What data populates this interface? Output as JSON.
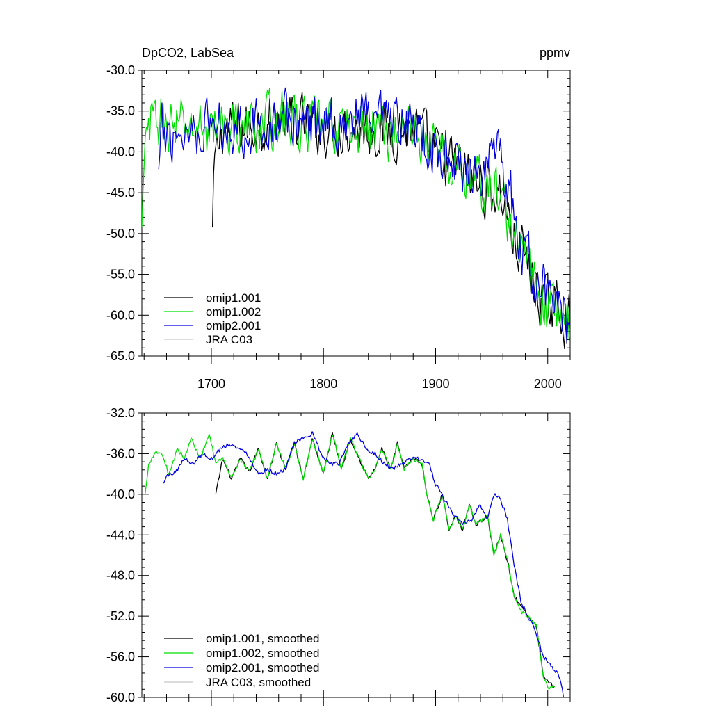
{
  "figure": {
    "title_left": "DpCO2, LabSea",
    "title_right": "ppmv"
  },
  "chart_data": [
    {
      "type": "line",
      "title": "DpCO2, LabSea",
      "units": "ppmv",
      "xlim": [
        1638,
        2020
      ],
      "ylim": [
        -65,
        -30
      ],
      "x_ticks": [
        1700,
        1800,
        1900,
        2000
      ],
      "y_ticks": [
        -30,
        -35,
        -40,
        -45,
        -50,
        -55,
        -60,
        -65
      ],
      "y_tick_labels": [
        "-30.0",
        "-35.0",
        "-40.0",
        "-45.0",
        "-50.0",
        "-55.0",
        "-60.0",
        "-65.0"
      ],
      "x_tick_labels": [
        "1700",
        "1800",
        "1900",
        "2000"
      ],
      "legend": [
        "omip1.001",
        "omip1.002",
        "omip2.001",
        "JRA C03"
      ],
      "series": [
        {
          "name": "omip1.001",
          "color": "#000000",
          "start": 1701,
          "end": 2020,
          "spike": -50,
          "anchors": [
            [
              1701,
              -50
            ],
            [
              1703,
              -41.5
            ],
            [
              1710,
              -37
            ],
            [
              1730,
              -37
            ],
            [
              1760,
              -36
            ],
            [
              1800,
              -37
            ],
            [
              1830,
              -37
            ],
            [
              1860,
              -37.5
            ],
            [
              1880,
              -37
            ],
            [
              1900,
              -40
            ],
            [
              1920,
              -42
            ],
            [
              1940,
              -44
            ],
            [
              1960,
              -45.5
            ],
            [
              1970,
              -51
            ],
            [
              1980,
              -53
            ],
            [
              1990,
              -57
            ],
            [
              2000,
              -59
            ],
            [
              2010,
              -59
            ],
            [
              2018,
              -61
            ]
          ]
        },
        {
          "name": "omip1.002",
          "color": "#00e000",
          "start": 1638,
          "end": 2020,
          "spike": -50,
          "anchors": [
            [
              1638,
              -50
            ],
            [
              1642,
              -38
            ],
            [
              1650,
              -36
            ],
            [
              1670,
              -37
            ],
            [
              1700,
              -37
            ],
            [
              1730,
              -37
            ],
            [
              1760,
              -36
            ],
            [
              1800,
              -37
            ],
            [
              1830,
              -37
            ],
            [
              1860,
              -37.5
            ],
            [
              1880,
              -37
            ],
            [
              1900,
              -40
            ],
            [
              1920,
              -42
            ],
            [
              1940,
              -44
            ],
            [
              1960,
              -45.5
            ],
            [
              1970,
              -51
            ],
            [
              1980,
              -53
            ],
            [
              1990,
              -57
            ],
            [
              2000,
              -59
            ],
            [
              2010,
              -59.5
            ],
            [
              2018,
              -61
            ]
          ]
        },
        {
          "name": "omip2.001",
          "color": "#0000e0",
          "start": 1653,
          "end": 2020,
          "spike": -43,
          "anchors": [
            [
              1653,
              -43
            ],
            [
              1656,
              -38
            ],
            [
              1670,
              -37.5
            ],
            [
              1700,
              -36.5
            ],
            [
              1730,
              -37
            ],
            [
              1760,
              -36
            ],
            [
              1800,
              -36.5
            ],
            [
              1830,
              -36
            ],
            [
              1860,
              -37
            ],
            [
              1880,
              -37
            ],
            [
              1900,
              -39.5
            ],
            [
              1920,
              -41.5
            ],
            [
              1940,
              -42.5
            ],
            [
              1955,
              -41
            ],
            [
              1965,
              -44
            ],
            [
              1975,
              -51
            ],
            [
              1990,
              -56
            ],
            [
              2000,
              -57.5
            ],
            [
              2010,
              -58.5
            ],
            [
              2018,
              -61
            ]
          ]
        },
        {
          "name": "JRA C03",
          "color": "#c8c8c8",
          "start": 2019,
          "end": 2019,
          "anchors": []
        }
      ]
    },
    {
      "type": "line",
      "title": "",
      "xlim": [
        1638,
        2020
      ],
      "ylim": [
        -60,
        -32
      ],
      "x_ticks": [
        1700,
        1800,
        1900,
        2000
      ],
      "y_ticks": [
        -32,
        -36,
        -40,
        -44,
        -48,
        -52,
        -56,
        -60
      ],
      "y_tick_labels": [
        "-32.0",
        "-36.0",
        "-40.0",
        "-44.0",
        "-48.0",
        "-52.0",
        "-56.0",
        "-60.0"
      ],
      "legend": [
        "omip1.001, smoothed",
        "omip1.002, smoothed",
        "omip2.001, smoothed",
        "JRA C03, smoothed"
      ],
      "series": [
        {
          "name": "omip1.001, smoothed",
          "color": "#000000",
          "start": 1704,
          "end": 2006,
          "anchors": [
            [
              1704,
              -40
            ],
            [
              1710,
              -36.5
            ],
            [
              1718,
              -38.5
            ],
            [
              1726,
              -36.5
            ],
            [
              1734,
              -37.8
            ],
            [
              1742,
              -35.5
            ],
            [
              1750,
              -38.5
            ],
            [
              1758,
              -35
            ],
            [
              1766,
              -37.5
            ],
            [
              1774,
              -35
            ],
            [
              1782,
              -38.5
            ],
            [
              1790,
              -34.5
            ],
            [
              1800,
              -38
            ],
            [
              1808,
              -34
            ],
            [
              1816,
              -37.5
            ],
            [
              1824,
              -34.5
            ],
            [
              1834,
              -37
            ],
            [
              1840,
              -38.5
            ],
            [
              1846,
              -37.5
            ],
            [
              1852,
              -35.5
            ],
            [
              1860,
              -37.5
            ],
            [
              1866,
              -35
            ],
            [
              1872,
              -37.5
            ],
            [
              1880,
              -36.5
            ],
            [
              1888,
              -37
            ],
            [
              1892,
              -40
            ],
            [
              1898,
              -42.5
            ],
            [
              1906,
              -40
            ],
            [
              1912,
              -43.5
            ],
            [
              1918,
              -42
            ],
            [
              1924,
              -43.5
            ],
            [
              1930,
              -41
            ],
            [
              1936,
              -43
            ],
            [
              1942,
              -42.5
            ],
            [
              1946,
              -42
            ],
            [
              1952,
              -46
            ],
            [
              1958,
              -44
            ],
            [
              1965,
              -47
            ],
            [
              1970,
              -50
            ],
            [
              1976,
              -51
            ],
            [
              1982,
              -52
            ],
            [
              1990,
              -53
            ],
            [
              1996,
              -58
            ],
            [
              2000,
              -58.5
            ],
            [
              2006,
              -59
            ]
          ]
        },
        {
          "name": "omip1.002, smoothed",
          "color": "#00e000",
          "start": 1641,
          "end": 2006,
          "anchors": [
            [
              1641,
              -40
            ],
            [
              1644,
              -37
            ],
            [
              1650,
              -35.8
            ],
            [
              1656,
              -36
            ],
            [
              1662,
              -38
            ],
            [
              1670,
              -35.5
            ],
            [
              1676,
              -36.5
            ],
            [
              1682,
              -34.5
            ],
            [
              1690,
              -36.5
            ],
            [
              1698,
              -34
            ],
            [
              1704,
              -37
            ],
            [
              1710,
              -36.5
            ],
            [
              1718,
              -38.5
            ],
            [
              1726,
              -36.5
            ],
            [
              1734,
              -37.8
            ],
            [
              1742,
              -35.5
            ],
            [
              1750,
              -38.5
            ],
            [
              1758,
              -35
            ],
            [
              1766,
              -37.5
            ],
            [
              1774,
              -35
            ],
            [
              1782,
              -38.5
            ],
            [
              1790,
              -34.5
            ],
            [
              1800,
              -38
            ],
            [
              1808,
              -34
            ],
            [
              1816,
              -37.5
            ],
            [
              1824,
              -34.5
            ],
            [
              1834,
              -37
            ],
            [
              1840,
              -38.5
            ],
            [
              1846,
              -37.5
            ],
            [
              1852,
              -35.5
            ],
            [
              1860,
              -37.5
            ],
            [
              1866,
              -35
            ],
            [
              1872,
              -37.5
            ],
            [
              1880,
              -36.5
            ],
            [
              1888,
              -37
            ],
            [
              1892,
              -40
            ],
            [
              1898,
              -42.5
            ],
            [
              1906,
              -40
            ],
            [
              1912,
              -43.5
            ],
            [
              1918,
              -42
            ],
            [
              1924,
              -43.5
            ],
            [
              1930,
              -41
            ],
            [
              1936,
              -43
            ],
            [
              1942,
              -42.5
            ],
            [
              1946,
              -42
            ],
            [
              1952,
              -46
            ],
            [
              1958,
              -44
            ],
            [
              1965,
              -47
            ],
            [
              1970,
              -50
            ],
            [
              1976,
              -51.5
            ],
            [
              1982,
              -52
            ],
            [
              1990,
              -53
            ],
            [
              1996,
              -58
            ],
            [
              2000,
              -59
            ],
            [
              2006,
              -59
            ]
          ]
        },
        {
          "name": "omip2.001, smoothed",
          "color": "#0000e0",
          "start": 1657,
          "end": 2014,
          "anchors": [
            [
              1657,
              -39
            ],
            [
              1660,
              -38.2
            ],
            [
              1668,
              -37.8
            ],
            [
              1676,
              -36.5
            ],
            [
              1684,
              -37
            ],
            [
              1692,
              -36
            ],
            [
              1700,
              -36.5
            ],
            [
              1708,
              -35.5
            ],
            [
              1716,
              -35
            ],
            [
              1724,
              -35.5
            ],
            [
              1732,
              -36
            ],
            [
              1742,
              -38
            ],
            [
              1750,
              -37.5
            ],
            [
              1758,
              -38
            ],
            [
              1766,
              -37.5
            ],
            [
              1774,
              -35
            ],
            [
              1782,
              -34.5
            ],
            [
              1790,
              -34
            ],
            [
              1798,
              -36
            ],
            [
              1806,
              -37
            ],
            [
              1814,
              -37
            ],
            [
              1822,
              -35
            ],
            [
              1830,
              -34
            ],
            [
              1838,
              -35.5
            ],
            [
              1846,
              -36
            ],
            [
              1854,
              -37
            ],
            [
              1862,
              -37.5
            ],
            [
              1870,
              -37
            ],
            [
              1878,
              -36.5
            ],
            [
              1886,
              -36.5
            ],
            [
              1894,
              -37
            ],
            [
              1900,
              -39
            ],
            [
              1908,
              -40.5
            ],
            [
              1916,
              -42
            ],
            [
              1924,
              -43
            ],
            [
              1932,
              -42.5
            ],
            [
              1940,
              -41
            ],
            [
              1946,
              -42.5
            ],
            [
              1952,
              -40
            ],
            [
              1958,
              -40.5
            ],
            [
              1964,
              -42.5
            ],
            [
              1970,
              -47
            ],
            [
              1976,
              -50.5
            ],
            [
              1982,
              -52
            ],
            [
              1988,
              -53
            ],
            [
              1996,
              -56
            ],
            [
              2000,
              -56.5
            ],
            [
              2008,
              -57.5
            ],
            [
              2012,
              -58.5
            ],
            [
              2014,
              -60
            ]
          ]
        },
        {
          "name": "JRA C03, smoothed",
          "color": "#c8c8c8",
          "start": 2019,
          "end": 2019,
          "anchors": []
        }
      ]
    }
  ]
}
